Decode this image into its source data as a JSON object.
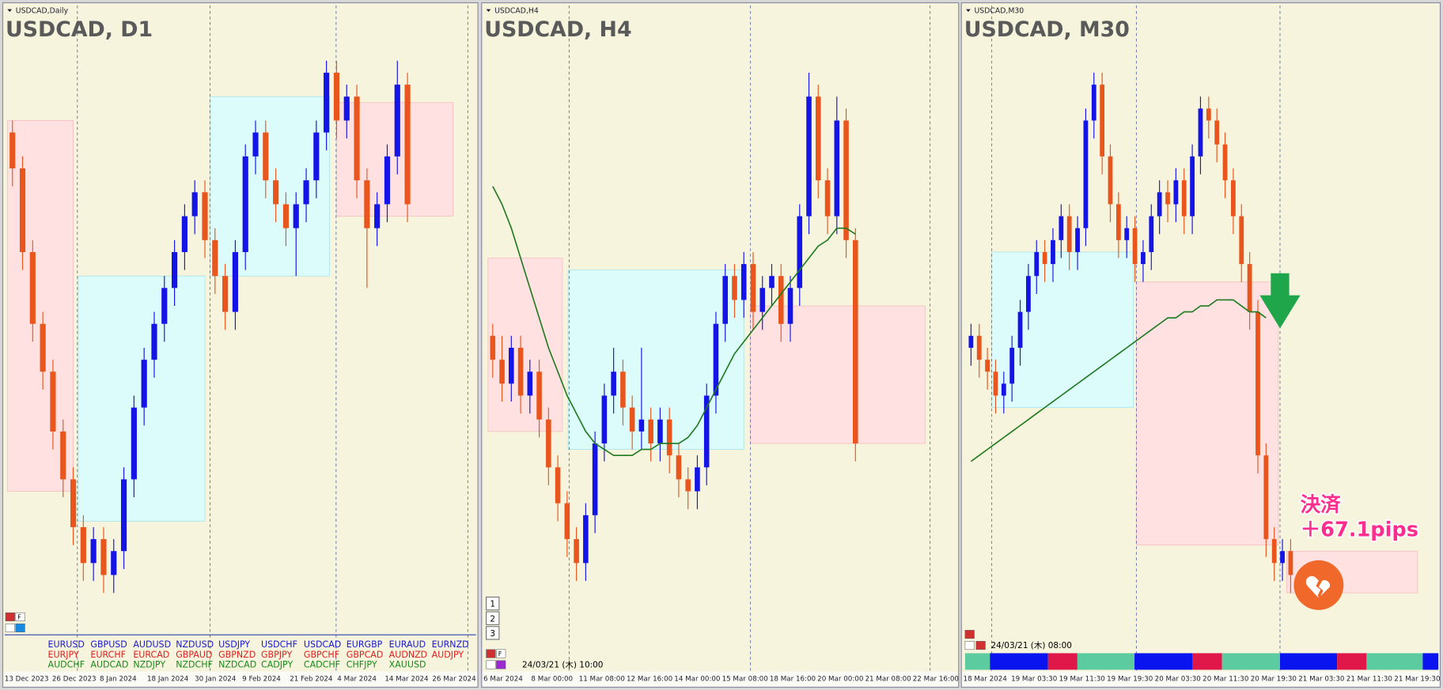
{
  "up_color": "#1414e6",
  "down_color": "#e8561e",
  "ma_color": "#1f7a1f",
  "f_label": "F",
  "panels": [
    {
      "label": "USDCAD,Daily",
      "title": "USDCAD, D1",
      "dates": [
        "13 Dec 2023",
        "26 Dec 2023",
        "8 Jan 2024",
        "18 Jan 2024",
        "30 Jan 2024",
        "9 Feb 2024",
        "21 Feb 2024",
        "4 Mar 2024",
        "14 Mar 2024",
        "26 Mar 2024"
      ],
      "candles": [
        [
          84,
          86,
          75,
          78
        ],
        [
          78,
          80,
          61,
          64
        ],
        [
          64,
          66,
          49,
          52
        ],
        [
          52,
          54,
          41,
          44
        ],
        [
          44,
          46,
          31,
          34
        ],
        [
          34,
          36,
          23,
          26
        ],
        [
          26,
          28,
          15,
          18
        ],
        [
          18,
          20,
          9,
          12
        ],
        [
          12,
          18,
          9,
          16
        ],
        [
          16,
          18,
          7,
          10
        ],
        [
          10,
          16,
          7,
          14
        ],
        [
          14,
          28,
          11,
          26
        ],
        [
          26,
          40,
          23,
          38
        ],
        [
          38,
          48,
          35,
          46
        ],
        [
          46,
          54,
          43,
          52
        ],
        [
          52,
          60,
          49,
          58
        ],
        [
          58,
          66,
          55,
          64
        ],
        [
          64,
          72,
          61,
          70
        ],
        [
          70,
          76,
          67,
          74
        ],
        [
          74,
          76,
          63,
          66
        ],
        [
          66,
          68,
          57,
          60
        ],
        [
          60,
          62,
          51,
          54
        ],
        [
          54,
          66,
          51,
          64
        ],
        [
          64,
          82,
          61,
          80
        ],
        [
          80,
          86,
          77,
          84
        ],
        [
          84,
          86,
          73,
          76
        ],
        [
          76,
          78,
          69,
          72
        ],
        [
          72,
          74,
          65,
          68
        ],
        [
          68,
          74,
          60,
          72
        ],
        [
          72,
          78,
          69,
          76
        ],
        [
          76,
          86,
          73,
          84
        ],
        [
          84,
          96,
          81,
          94
        ],
        [
          94,
          96,
          83,
          86
        ],
        [
          86,
          92,
          83,
          90
        ],
        [
          90,
          92,
          73,
          76
        ],
        [
          76,
          78,
          58,
          68
        ],
        [
          68,
          74,
          65,
          72
        ],
        [
          72,
          82,
          69,
          80
        ],
        [
          80,
          96,
          77,
          92
        ],
        [
          92,
          94,
          69,
          72
        ]
      ],
      "zones": [
        {
          "from": 0,
          "to": 6.5,
          "low": 24,
          "high": 86,
          "color": "#ffe1e1"
        },
        {
          "from": 7,
          "to": 19.5,
          "low": 19,
          "high": 60,
          "color": "#dcfcfc"
        },
        {
          "from": 20,
          "to": 31.8,
          "low": 60,
          "high": 90,
          "color": "#dcfcfc"
        },
        {
          "from": 32.5,
          "to": 44,
          "low": 70,
          "high": 89,
          "color": "#ffe1e1"
        }
      ]
    },
    {
      "label": "USDCAD,H4",
      "title": "USDCAD, H4",
      "dates": [
        "6 Mar 2024",
        "8 Mar 00:00",
        "11 Mar 08:00",
        "12 Mar 16:00",
        "14 Mar 00:00",
        "15 Mar 08:00",
        "18 Mar 16:00",
        "20 Mar 00:00",
        "21 Mar 08:00",
        "22 Mar 16:00"
      ],
      "candles": [
        [
          50,
          52,
          43,
          46
        ],
        [
          46,
          50,
          39,
          42
        ],
        [
          42,
          50,
          39,
          48
        ],
        [
          48,
          50,
          37,
          40
        ],
        [
          40,
          46,
          37,
          44
        ],
        [
          44,
          46,
          33,
          36
        ],
        [
          36,
          38,
          25,
          28
        ],
        [
          28,
          30,
          19,
          22
        ],
        [
          22,
          24,
          13,
          16
        ],
        [
          16,
          18,
          9,
          12
        ],
        [
          12,
          22,
          9,
          20
        ],
        [
          20,
          34,
          17,
          32
        ],
        [
          32,
          42,
          29,
          40
        ],
        [
          40,
          48,
          37,
          44
        ],
        [
          44,
          46,
          35,
          38
        ],
        [
          38,
          40,
          31,
          34
        ],
        [
          34,
          48,
          31,
          36
        ],
        [
          36,
          38,
          29,
          32
        ],
        [
          32,
          38,
          29,
          36
        ],
        [
          36,
          38,
          27,
          30
        ],
        [
          30,
          32,
          23,
          26
        ],
        [
          26,
          28,
          21,
          24
        ],
        [
          24,
          30,
          21,
          28
        ],
        [
          28,
          42,
          25,
          40
        ],
        [
          40,
          54,
          37,
          52
        ],
        [
          52,
          62,
          49,
          60
        ],
        [
          60,
          62,
          53,
          56
        ],
        [
          56,
          64,
          53,
          62
        ],
        [
          62,
          64,
          51,
          54
        ],
        [
          54,
          60,
          51,
          58
        ],
        [
          58,
          62,
          55,
          60
        ],
        [
          60,
          62,
          49,
          52
        ],
        [
          52,
          60,
          49,
          58
        ],
        [
          58,
          72,
          55,
          70
        ],
        [
          70,
          94,
          67,
          90
        ],
        [
          90,
          92,
          73,
          76
        ],
        [
          76,
          78,
          67,
          70
        ],
        [
          70,
          90,
          67,
          86
        ],
        [
          86,
          88,
          63,
          66
        ],
        [
          66,
          68,
          29,
          32
        ]
      ],
      "ma": [
        75,
        72,
        68,
        63,
        58,
        53,
        48,
        44,
        40,
        37,
        34,
        32,
        31,
        30,
        30,
        30,
        31,
        31,
        32,
        32,
        32,
        33,
        35,
        38,
        41,
        44,
        47,
        49,
        51,
        53,
        55,
        57,
        59,
        61,
        63,
        65,
        66,
        68,
        68,
        67
      ],
      "zones": [
        {
          "from": 0,
          "to": 8,
          "low": 34,
          "high": 63,
          "color": "#ffe1e1"
        },
        {
          "from": 8.6,
          "to": 27.5,
          "low": 31,
          "high": 61,
          "color": "#dcfcfc"
        },
        {
          "from": 28.2,
          "to": 47,
          "low": 32,
          "high": 55,
          "color": "#ffe1e1"
        }
      ],
      "time": "24/03/21 (木) 10:00",
      "buttons": [
        "1",
        "2",
        "3"
      ]
    },
    {
      "label": "USDCAD,M30",
      "title": "USDCAD, M30",
      "dates": [
        "18 Mar 2024",
        "19 Mar 03:30",
        "19 Mar 11:30",
        "19 Mar 19:30",
        "20 Mar 03:30",
        "20 Mar 11:30",
        "20 Mar 19:30",
        "21 Mar 03:30",
        "21 Mar 11:30",
        "21 Mar 19:30"
      ],
      "candles": [
        [
          48,
          52,
          45,
          50
        ],
        [
          50,
          52,
          43,
          46
        ],
        [
          46,
          48,
          41,
          44
        ],
        [
          44,
          46,
          37,
          40
        ],
        [
          40,
          44,
          37,
          42
        ],
        [
          42,
          50,
          39,
          48
        ],
        [
          48,
          56,
          45,
          54
        ],
        [
          54,
          62,
          51,
          60
        ],
        [
          60,
          66,
          57,
          64
        ],
        [
          64,
          66,
          59,
          62
        ],
        [
          62,
          68,
          59,
          66
        ],
        [
          66,
          72,
          63,
          70
        ],
        [
          70,
          72,
          61,
          64
        ],
        [
          64,
          70,
          61,
          68
        ],
        [
          68,
          88,
          65,
          86
        ],
        [
          86,
          94,
          83,
          92
        ],
        [
          92,
          94,
          77,
          80
        ],
        [
          80,
          82,
          69,
          72
        ],
        [
          72,
          74,
          63,
          66
        ],
        [
          66,
          70,
          63,
          68
        ],
        [
          68,
          70,
          59,
          62
        ],
        [
          62,
          66,
          59,
          64
        ],
        [
          64,
          72,
          61,
          70
        ],
        [
          70,
          76,
          67,
          74
        ],
        [
          74,
          76,
          69,
          72
        ],
        [
          72,
          78,
          69,
          76
        ],
        [
          76,
          78,
          67,
          70
        ],
        [
          70,
          82,
          67,
          80
        ],
        [
          80,
          90,
          77,
          88
        ],
        [
          88,
          90,
          83,
          86
        ],
        [
          86,
          88,
          79,
          82
        ],
        [
          82,
          84,
          73,
          76
        ],
        [
          76,
          78,
          67,
          70
        ],
        [
          70,
          72,
          59,
          62
        ],
        [
          62,
          64,
          51,
          54
        ],
        [
          54,
          56,
          27,
          30
        ],
        [
          30,
          32,
          13,
          16
        ],
        [
          16,
          18,
          9,
          12
        ],
        [
          12,
          16,
          9,
          14
        ],
        [
          14,
          16,
          7,
          10
        ]
      ],
      "ma": [
        29,
        30,
        31,
        32,
        33,
        34,
        35,
        36,
        37,
        38,
        39,
        40,
        41,
        42,
        43,
        44,
        45,
        46,
        47,
        48,
        49,
        50,
        51,
        52,
        53,
        53,
        54,
        54,
        55,
        55,
        56,
        56,
        56,
        55,
        54,
        54,
        53,
        null,
        null,
        null
      ],
      "zones": [
        {
          "from": 3,
          "to": 20.3,
          "low": 38,
          "high": 64,
          "color": "#dcfcfc"
        },
        {
          "from": 20.7,
          "to": 38,
          "low": 15,
          "high": 59,
          "color": "#ffe1e1"
        },
        {
          "from": 39,
          "to": 55,
          "low": 7,
          "high": 14,
          "color": "#ffe1e1"
        }
      ],
      "time": "24/03/21 (木) 08:00",
      "annotation": [
        "決済",
        "＋67.1pips"
      ]
    }
  ],
  "symbols": [
    [
      "EURUSD",
      "GBPUSD",
      "AUDUSD",
      "NZDUSD",
      "USDJPY",
      "USDCHF",
      "USDCAD",
      "EURGBP",
      "EURAUD",
      "EURNZD"
    ],
    [
      "EURJPY",
      "EURCHF",
      "EURCAD",
      "GBPAUD",
      "GBPNZD",
      "GBPJPY",
      "GBPCHF",
      "GBPCAD",
      "AUDNZD",
      "AUDJPY"
    ],
    [
      "AUDCHF",
      "AUDCAD",
      "NZDJPY",
      "NZDCHF",
      "NZDCAD",
      "CADJPY",
      "CADCHF",
      "CHFJPY",
      "XAUUSD"
    ]
  ],
  "symbol_colors": [
    "#1a1ad0",
    "#e02020",
    "#1a8a1a"
  ]
}
